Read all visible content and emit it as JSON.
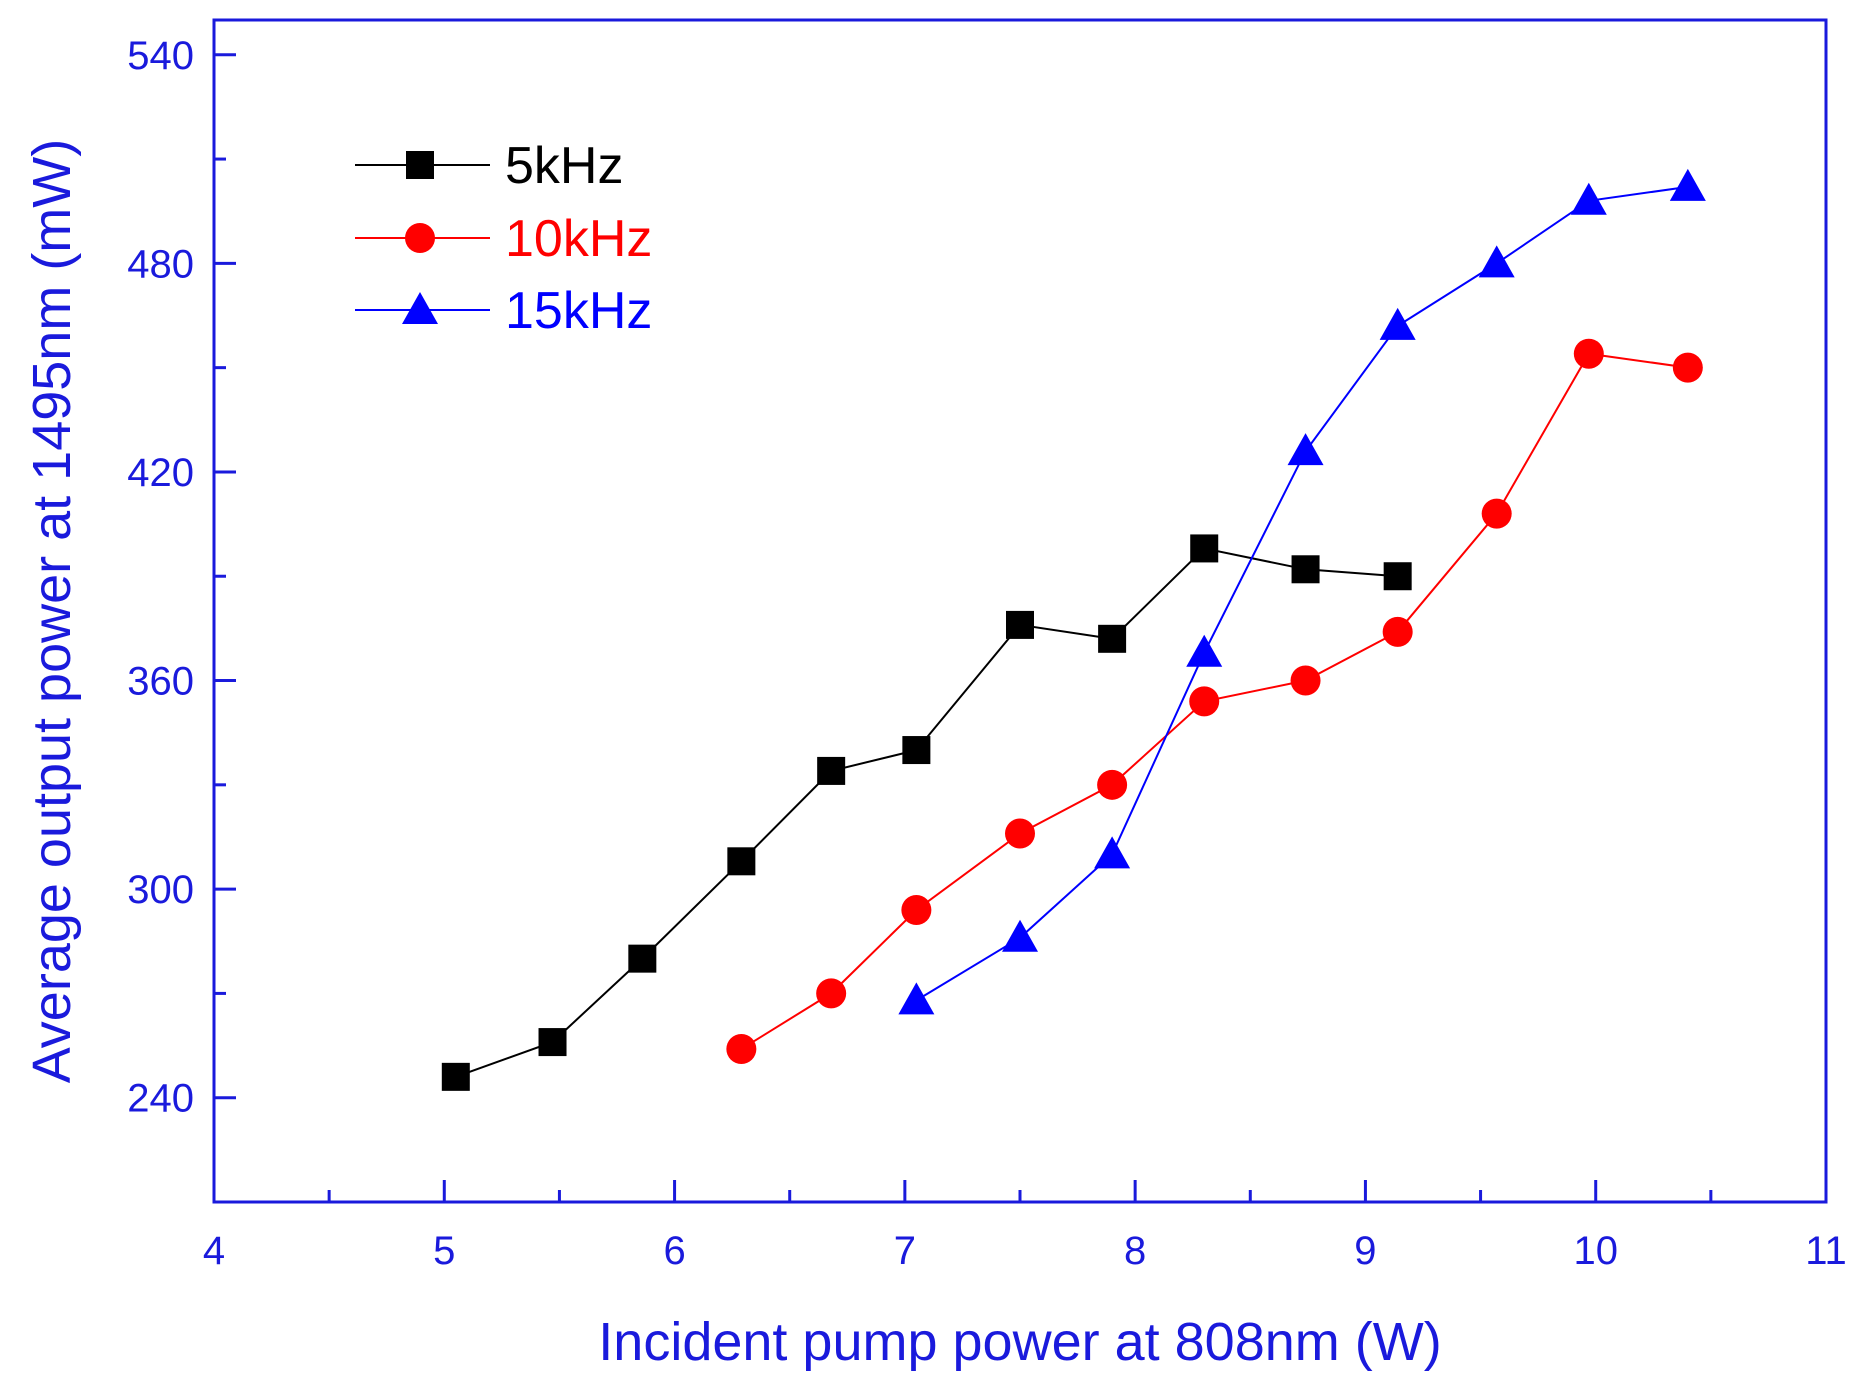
{
  "chart_data": {
    "type": "line",
    "title": "",
    "xlabel": "Incident pump power at 808nm (W)",
    "ylabel": "Average output power at 1495nm (mW)",
    "xlim": [
      4,
      11
    ],
    "ylim": [
      210,
      550
    ],
    "xticks": [
      4,
      5,
      6,
      7,
      8,
      9,
      10,
      11
    ],
    "xtick_labels": [
      "4",
      "5",
      "6",
      "7",
      "8",
      "9",
      "10",
      "11"
    ],
    "yticks": [
      240,
      300,
      360,
      420,
      480,
      540
    ],
    "ytick_labels": [
      "240",
      "300",
      "360",
      "420",
      "480",
      "540"
    ],
    "grid": false,
    "legend_position": "top-left",
    "axis_color": "#1a1adc",
    "series": [
      {
        "name": "5kHz",
        "color": "#000000",
        "marker": "square",
        "x": [
          5.05,
          5.47,
          5.86,
          6.29,
          6.68,
          7.05,
          7.5,
          7.9,
          8.3,
          8.74,
          9.14
        ],
        "y": [
          246,
          256,
          280,
          308,
          334,
          340,
          376,
          372,
          398,
          392,
          390
        ]
      },
      {
        "name": "10kHz",
        "color": "#ff0000",
        "marker": "circle",
        "x": [
          6.29,
          6.68,
          7.05,
          7.5,
          7.9,
          8.3,
          8.74,
          9.14,
          9.57,
          9.97,
          10.4
        ],
        "y": [
          254,
          270,
          294,
          316,
          330,
          354,
          360,
          374,
          408,
          454,
          450
        ]
      },
      {
        "name": "15kHz",
        "color": "#0000ff",
        "marker": "triangle",
        "x": [
          7.05,
          7.5,
          7.9,
          8.3,
          8.74,
          9.14,
          9.57,
          9.97,
          10.4
        ],
        "y": [
          268,
          286,
          310,
          368,
          426,
          462,
          480,
          498,
          502
        ]
      }
    ]
  }
}
